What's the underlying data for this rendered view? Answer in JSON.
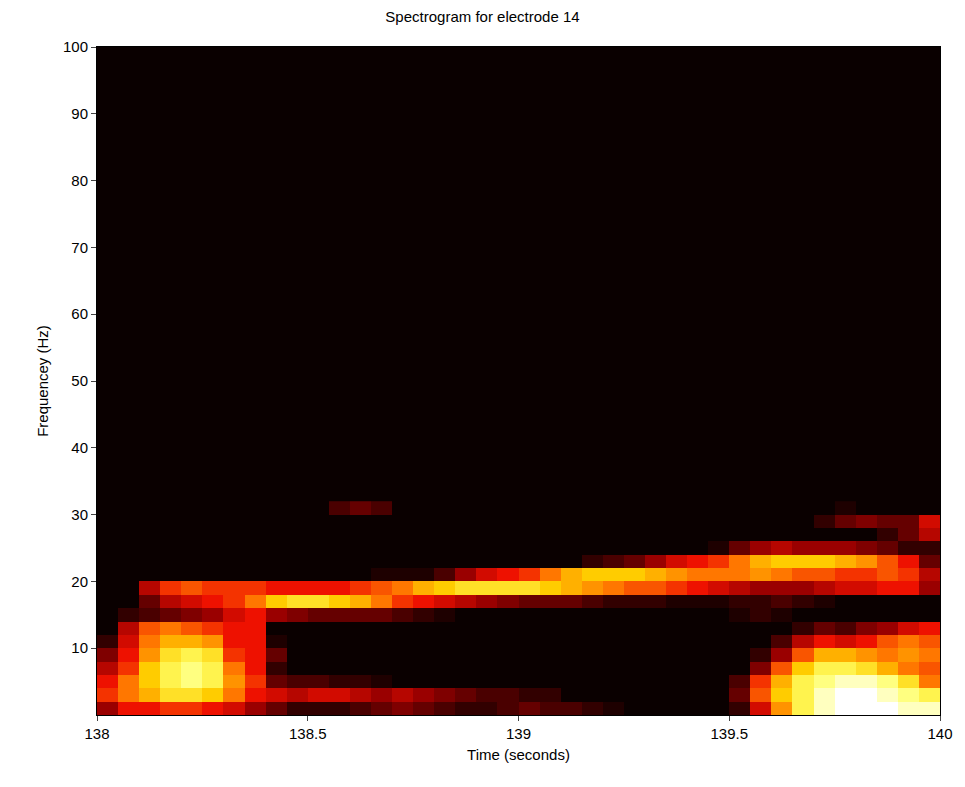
{
  "chart_data": {
    "type": "heatmap",
    "title": "Spectrogram for electrode 14",
    "x_label": "Time (seconds)",
    "y_label": "Frequencey (Hz)",
    "xlim": [
      138,
      140
    ],
    "xticks": [
      138,
      138.5,
      139,
      139.5,
      140
    ],
    "ylim": [
      0,
      100
    ],
    "yticks": [
      10,
      20,
      30,
      40,
      50,
      60,
      70,
      80,
      90,
      100
    ],
    "zlim": [
      0,
      1
    ],
    "x": [
      138.025,
      138.075,
      138.125,
      138.175,
      138.225,
      138.275,
      138.325,
      138.375,
      138.425,
      138.475,
      138.525,
      138.575,
      138.625,
      138.675,
      138.725,
      138.775,
      138.825,
      138.875,
      138.925,
      138.975,
      139.025,
      139.075,
      139.125,
      139.175,
      139.225,
      139.275,
      139.325,
      139.375,
      139.425,
      139.475,
      139.525,
      139.575,
      139.625,
      139.675,
      139.725,
      139.775,
      139.825,
      139.875,
      139.925,
      139.975
    ],
    "y": [
      1,
      3,
      5,
      7,
      9,
      11,
      13,
      15,
      17,
      19,
      21,
      23,
      25,
      27,
      29,
      31
    ],
    "z": [
      [
        0.3,
        0.45,
        0.45,
        0.5,
        0.5,
        0.45,
        0.4,
        0.3,
        0.2,
        0.1,
        0.1,
        0.1,
        0.15,
        0.2,
        0.25,
        0.2,
        0.15,
        0.1,
        0.1,
        0.15,
        0.2,
        0.15,
        0.15,
        0.1,
        0.05,
        0,
        0,
        0,
        0,
        0,
        0.1,
        0.4,
        0.65,
        0.85,
        0.95,
        1,
        1,
        1,
        0.95,
        0.95
      ],
      [
        0.5,
        0.6,
        0.7,
        0.8,
        0.8,
        0.75,
        0.6,
        0.45,
        0.4,
        0.35,
        0.4,
        0.4,
        0.35,
        0.3,
        0.35,
        0.3,
        0.25,
        0.2,
        0.15,
        0.15,
        0.1,
        0.1,
        0,
        0,
        0,
        0,
        0,
        0,
        0,
        0,
        0.2,
        0.55,
        0.75,
        0.85,
        0.95,
        1,
        1,
        0.95,
        0.9,
        0.85
      ],
      [
        0.45,
        0.6,
        0.75,
        0.85,
        0.9,
        0.85,
        0.65,
        0.5,
        0.2,
        0.15,
        0.15,
        0.1,
        0.1,
        0.05,
        0,
        0,
        0,
        0,
        0,
        0,
        0,
        0,
        0,
        0,
        0,
        0,
        0,
        0,
        0,
        0,
        0.15,
        0.5,
        0.7,
        0.85,
        0.9,
        0.95,
        0.95,
        0.9,
        0.8,
        0.6
      ],
      [
        0.35,
        0.5,
        0.75,
        0.85,
        0.9,
        0.85,
        0.6,
        0.45,
        0.1,
        0,
        0,
        0,
        0,
        0,
        0,
        0,
        0,
        0,
        0,
        0,
        0,
        0,
        0,
        0,
        0,
        0,
        0,
        0,
        0,
        0,
        0,
        0.25,
        0.55,
        0.75,
        0.85,
        0.85,
        0.8,
        0.7,
        0.6,
        0.55
      ],
      [
        0.25,
        0.45,
        0.65,
        0.8,
        0.85,
        0.8,
        0.5,
        0.45,
        0.2,
        0,
        0,
        0,
        0,
        0,
        0,
        0,
        0,
        0,
        0,
        0,
        0,
        0,
        0,
        0,
        0,
        0,
        0,
        0,
        0,
        0,
        0,
        0.1,
        0.3,
        0.55,
        0.7,
        0.7,
        0.65,
        0.6,
        0.65,
        0.6
      ],
      [
        0.1,
        0.4,
        0.6,
        0.7,
        0.7,
        0.65,
        0.45,
        0.45,
        0.05,
        0,
        0,
        0,
        0,
        0,
        0,
        0,
        0,
        0,
        0,
        0,
        0,
        0,
        0,
        0,
        0,
        0,
        0,
        0,
        0,
        0,
        0,
        0,
        0.15,
        0.35,
        0.45,
        0.4,
        0.45,
        0.55,
        0.6,
        0.55
      ],
      [
        0,
        0.35,
        0.55,
        0.6,
        0.55,
        0.5,
        0.45,
        0.45,
        0,
        0,
        0,
        0,
        0,
        0,
        0,
        0,
        0,
        0,
        0,
        0,
        0,
        0,
        0,
        0,
        0,
        0,
        0,
        0,
        0,
        0,
        0,
        0,
        0,
        0.1,
        0.2,
        0.15,
        0.25,
        0.3,
        0.4,
        0.45
      ],
      [
        0,
        0.1,
        0.15,
        0.2,
        0.25,
        0.3,
        0.4,
        0.45,
        0.3,
        0.25,
        0.2,
        0.2,
        0.2,
        0.2,
        0.15,
        0.1,
        0.05,
        0,
        0,
        0,
        0,
        0,
        0,
        0,
        0,
        0,
        0,
        0,
        0,
        0,
        0.05,
        0.1,
        0.05,
        0,
        0,
        0,
        0,
        0,
        0,
        0
      ],
      [
        0,
        0,
        0.2,
        0.35,
        0.4,
        0.45,
        0.5,
        0.6,
        0.75,
        0.8,
        0.8,
        0.75,
        0.7,
        0.6,
        0.5,
        0.45,
        0.4,
        0.35,
        0.3,
        0.25,
        0.2,
        0.2,
        0.2,
        0.15,
        0.1,
        0.1,
        0.1,
        0.05,
        0.05,
        0.05,
        0.1,
        0.1,
        0.15,
        0.1,
        0.05,
        0,
        0,
        0,
        0,
        0
      ],
      [
        0,
        0,
        0.35,
        0.5,
        0.55,
        0.5,
        0.5,
        0.5,
        0.45,
        0.45,
        0.45,
        0.45,
        0.5,
        0.55,
        0.6,
        0.7,
        0.75,
        0.8,
        0.8,
        0.8,
        0.8,
        0.75,
        0.7,
        0.65,
        0.6,
        0.55,
        0.55,
        0.5,
        0.45,
        0.4,
        0.35,
        0.3,
        0.3,
        0.3,
        0.35,
        0.4,
        0.4,
        0.45,
        0.45,
        0.3
      ],
      [
        0,
        0,
        0,
        0,
        0,
        0,
        0,
        0,
        0,
        0,
        0,
        0,
        0,
        0.05,
        0.05,
        0.05,
        0.15,
        0.3,
        0.4,
        0.45,
        0.5,
        0.6,
        0.7,
        0.75,
        0.75,
        0.75,
        0.7,
        0.65,
        0.6,
        0.6,
        0.6,
        0.65,
        0.6,
        0.55,
        0.55,
        0.5,
        0.5,
        0.55,
        0.5,
        0.35
      ],
      [
        0,
        0,
        0,
        0,
        0,
        0,
        0,
        0,
        0,
        0,
        0,
        0,
        0,
        0,
        0,
        0,
        0,
        0,
        0,
        0,
        0,
        0,
        0,
        0.1,
        0.15,
        0.2,
        0.3,
        0.4,
        0.45,
        0.5,
        0.6,
        0.7,
        0.75,
        0.75,
        0.75,
        0.7,
        0.65,
        0.55,
        0.45,
        0.2
      ],
      [
        0,
        0,
        0,
        0,
        0,
        0,
        0,
        0,
        0,
        0,
        0,
        0,
        0,
        0,
        0,
        0,
        0,
        0,
        0,
        0,
        0,
        0,
        0,
        0,
        0,
        0,
        0,
        0,
        0,
        0.05,
        0.2,
        0.3,
        0.35,
        0.3,
        0.3,
        0.3,
        0.25,
        0.2,
        0.1,
        0.1
      ],
      [
        0,
        0,
        0,
        0,
        0,
        0,
        0,
        0,
        0,
        0,
        0,
        0,
        0,
        0,
        0,
        0,
        0,
        0,
        0,
        0,
        0,
        0,
        0,
        0,
        0,
        0,
        0,
        0,
        0,
        0,
        0,
        0,
        0,
        0,
        0,
        0,
        0,
        0.1,
        0.2,
        0.35
      ],
      [
        0,
        0,
        0,
        0,
        0,
        0,
        0,
        0,
        0,
        0,
        0,
        0,
        0,
        0,
        0,
        0,
        0,
        0,
        0,
        0,
        0,
        0,
        0,
        0,
        0,
        0,
        0,
        0,
        0,
        0,
        0,
        0,
        0,
        0,
        0.1,
        0.2,
        0.25,
        0.2,
        0.2,
        0.4
      ],
      [
        0,
        0,
        0,
        0,
        0,
        0,
        0,
        0,
        0,
        0,
        0,
        0.15,
        0.2,
        0.15,
        0,
        0,
        0,
        0,
        0,
        0,
        0,
        0,
        0,
        0,
        0,
        0,
        0,
        0,
        0,
        0,
        0,
        0,
        0,
        0,
        0,
        0.05,
        0,
        0,
        0,
        0
      ]
    ]
  }
}
